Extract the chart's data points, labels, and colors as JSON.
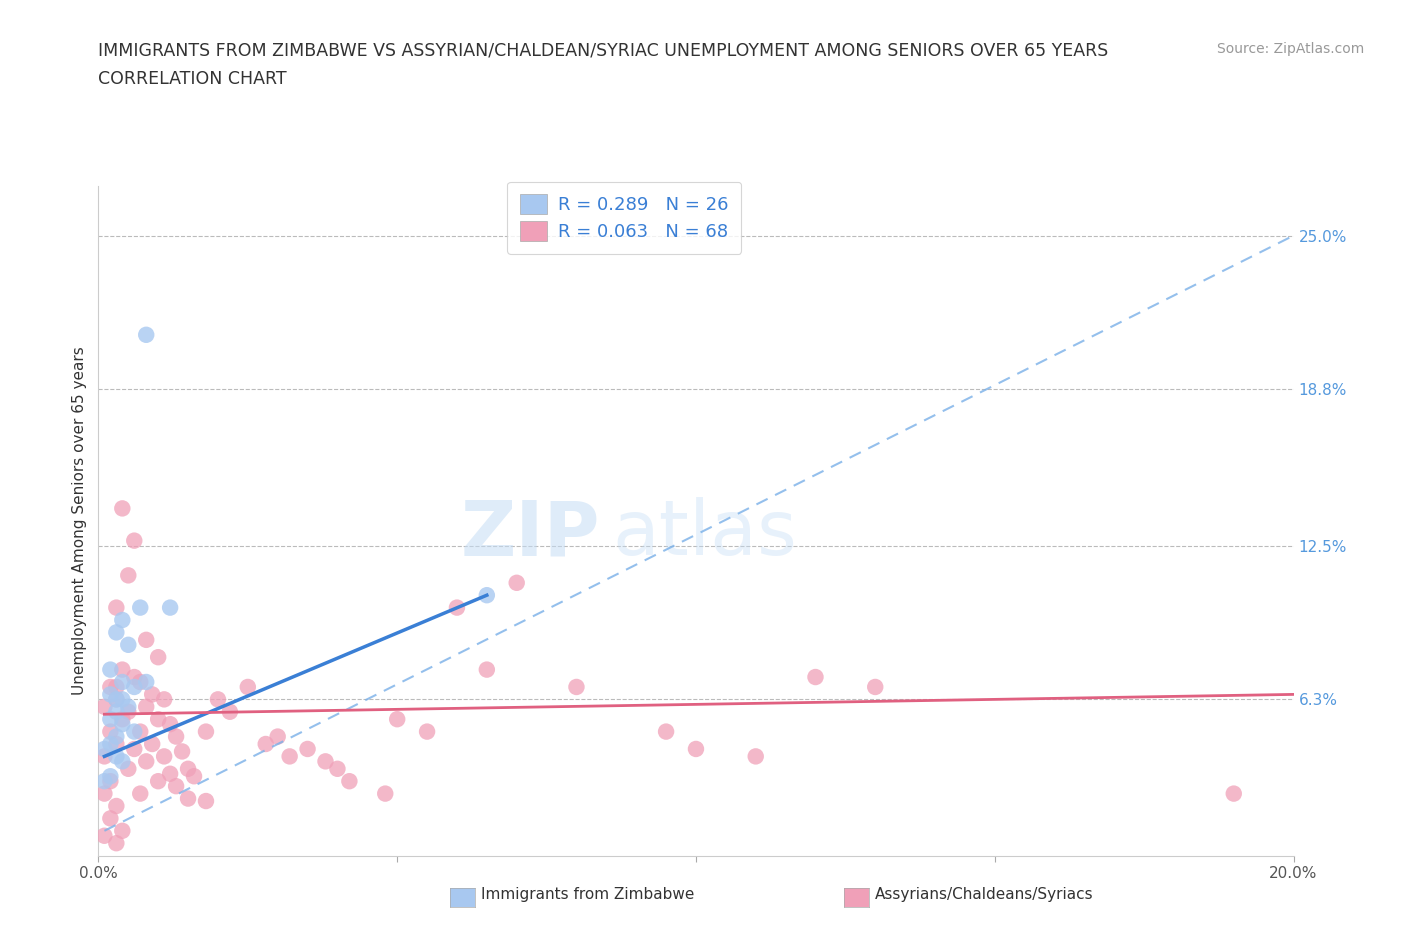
{
  "title_line1": "IMMIGRANTS FROM ZIMBABWE VS ASSYRIAN/CHALDEAN/SYRIAC UNEMPLOYMENT AMONG SENIORS OVER 65 YEARS",
  "title_line2": "CORRELATION CHART",
  "source": "Source: ZipAtlas.com",
  "ylabel": "Unemployment Among Seniors over 65 years",
  "xlim": [
    0.0,
    0.2
  ],
  "ylim": [
    0.0,
    0.27
  ],
  "ytick_values": [
    0.25,
    0.188,
    0.125,
    0.063
  ],
  "ytick_labels": [
    "25.0%",
    "18.8%",
    "12.5%",
    "6.3%"
  ],
  "blue_color": "#a8c8f0",
  "pink_color": "#f0a0b8",
  "trend_blue_solid": "#3a7fd5",
  "trend_blue_dash": "#7ab0e8",
  "trend_pink_solid": "#e06080",
  "blue_scatter": [
    [
      0.008,
      0.21
    ],
    [
      0.007,
      0.1
    ],
    [
      0.012,
      0.1
    ],
    [
      0.004,
      0.095
    ],
    [
      0.003,
      0.09
    ],
    [
      0.005,
      0.085
    ],
    [
      0.002,
      0.075
    ],
    [
      0.008,
      0.07
    ],
    [
      0.004,
      0.07
    ],
    [
      0.006,
      0.068
    ],
    [
      0.002,
      0.065
    ],
    [
      0.004,
      0.063
    ],
    [
      0.003,
      0.063
    ],
    [
      0.005,
      0.06
    ],
    [
      0.003,
      0.058
    ],
    [
      0.002,
      0.055
    ],
    [
      0.004,
      0.053
    ],
    [
      0.006,
      0.05
    ],
    [
      0.003,
      0.048
    ],
    [
      0.002,
      0.045
    ],
    [
      0.001,
      0.043
    ],
    [
      0.003,
      0.04
    ],
    [
      0.004,
      0.038
    ],
    [
      0.065,
      0.105
    ],
    [
      0.002,
      0.032
    ],
    [
      0.001,
      0.03
    ]
  ],
  "pink_scatter": [
    [
      0.004,
      0.14
    ],
    [
      0.006,
      0.127
    ],
    [
      0.005,
      0.113
    ],
    [
      0.003,
      0.1
    ],
    [
      0.008,
      0.087
    ],
    [
      0.01,
      0.08
    ],
    [
      0.004,
      0.075
    ],
    [
      0.006,
      0.072
    ],
    [
      0.007,
      0.07
    ],
    [
      0.003,
      0.068
    ],
    [
      0.009,
      0.065
    ],
    [
      0.011,
      0.063
    ],
    [
      0.008,
      0.06
    ],
    [
      0.005,
      0.058
    ],
    [
      0.01,
      0.055
    ],
    [
      0.012,
      0.053
    ],
    [
      0.007,
      0.05
    ],
    [
      0.013,
      0.048
    ],
    [
      0.009,
      0.045
    ],
    [
      0.006,
      0.043
    ],
    [
      0.014,
      0.042
    ],
    [
      0.011,
      0.04
    ],
    [
      0.008,
      0.038
    ],
    [
      0.015,
      0.035
    ],
    [
      0.012,
      0.033
    ],
    [
      0.016,
      0.032
    ],
    [
      0.01,
      0.03
    ],
    [
      0.013,
      0.028
    ],
    [
      0.007,
      0.025
    ],
    [
      0.015,
      0.023
    ],
    [
      0.018,
      0.022
    ],
    [
      0.002,
      0.068
    ],
    [
      0.003,
      0.063
    ],
    [
      0.001,
      0.06
    ],
    [
      0.004,
      0.055
    ],
    [
      0.002,
      0.05
    ],
    [
      0.003,
      0.045
    ],
    [
      0.001,
      0.04
    ],
    [
      0.005,
      0.035
    ],
    [
      0.002,
      0.03
    ],
    [
      0.001,
      0.025
    ],
    [
      0.003,
      0.02
    ],
    [
      0.002,
      0.015
    ],
    [
      0.004,
      0.01
    ],
    [
      0.001,
      0.008
    ],
    [
      0.003,
      0.005
    ],
    [
      0.025,
      0.068
    ],
    [
      0.02,
      0.063
    ],
    [
      0.022,
      0.058
    ],
    [
      0.018,
      0.05
    ],
    [
      0.03,
      0.048
    ],
    [
      0.028,
      0.045
    ],
    [
      0.035,
      0.043
    ],
    [
      0.032,
      0.04
    ],
    [
      0.038,
      0.038
    ],
    [
      0.04,
      0.035
    ],
    [
      0.042,
      0.03
    ],
    [
      0.048,
      0.025
    ],
    [
      0.05,
      0.055
    ],
    [
      0.055,
      0.05
    ],
    [
      0.06,
      0.1
    ],
    [
      0.07,
      0.11
    ],
    [
      0.065,
      0.075
    ],
    [
      0.08,
      0.068
    ],
    [
      0.12,
      0.072
    ],
    [
      0.13,
      0.068
    ],
    [
      0.095,
      0.05
    ],
    [
      0.1,
      0.043
    ],
    [
      0.11,
      0.04
    ],
    [
      0.19,
      0.025
    ]
  ],
  "blue_trendline": [
    [
      0.001,
      0.04
    ],
    [
      0.065,
      0.105
    ]
  ],
  "blue_dashline": [
    [
      0.001,
      0.01
    ],
    [
      0.2,
      0.25
    ]
  ],
  "pink_trendline": [
    [
      0.001,
      0.057
    ],
    [
      0.2,
      0.065
    ]
  ]
}
